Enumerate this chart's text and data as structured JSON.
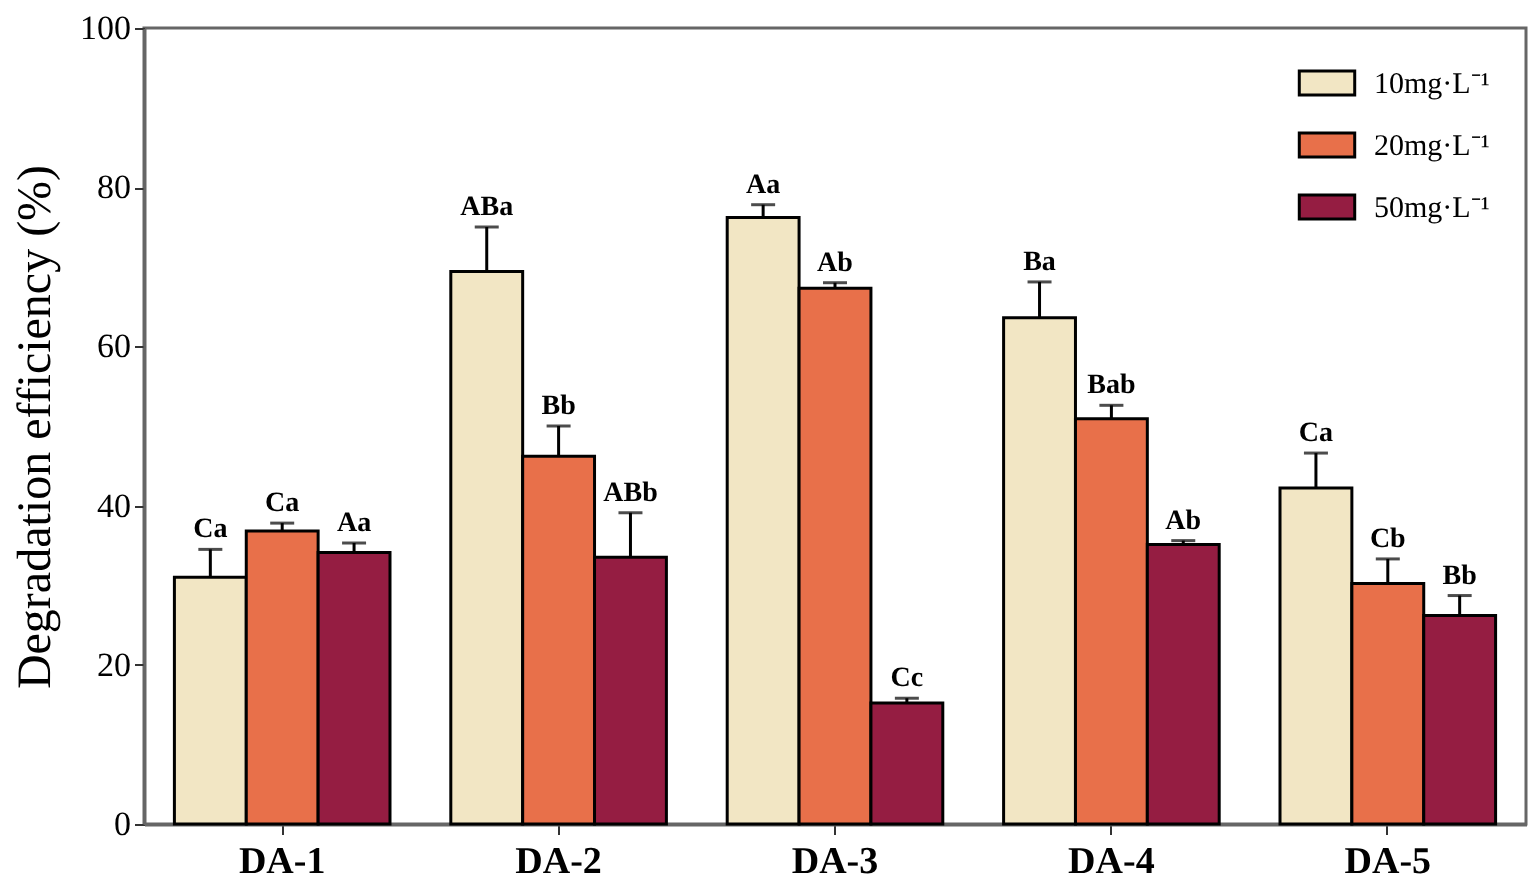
{
  "chart_data": {
    "type": "bar",
    "ylabel": "Degradation efficiency (%)",
    "categories": [
      "DA-1",
      "DA-2",
      "DA-3",
      "DA-4",
      "DA-5"
    ],
    "series": [
      {
        "name": "10mg·L⁻¹",
        "color": "#f2e6c4",
        "values": [
          31.0,
          69.4,
          76.2,
          63.6,
          42.2
        ],
        "errors": [
          3.5,
          5.6,
          1.6,
          4.5,
          4.4
        ],
        "value_labels": [
          "Ca",
          "ABa",
          "Aa",
          "Ba",
          "Ca"
        ]
      },
      {
        "name": "20mg·L⁻¹",
        "color": "#e8704a",
        "values": [
          36.8,
          46.2,
          67.3,
          50.9,
          30.2
        ],
        "errors": [
          1.0,
          3.8,
          0.7,
          1.7,
          3.1
        ],
        "value_labels": [
          "Ca",
          "Bb",
          "Ab",
          "Bab",
          "Cb"
        ]
      },
      {
        "name": "50mg·L⁻¹",
        "color": "#951d42",
        "values": [
          34.1,
          33.5,
          15.2,
          35.1,
          26.2
        ],
        "errors": [
          1.2,
          5.6,
          0.6,
          0.5,
          2.5
        ],
        "value_labels": [
          "Aa",
          "ABb",
          "Cc",
          "Ab",
          "Bb"
        ]
      }
    ],
    "ylim": [
      0,
      100
    ],
    "yticks": [
      0,
      20,
      40,
      60,
      80,
      100
    ],
    "grid": false,
    "legend": "top right"
  }
}
